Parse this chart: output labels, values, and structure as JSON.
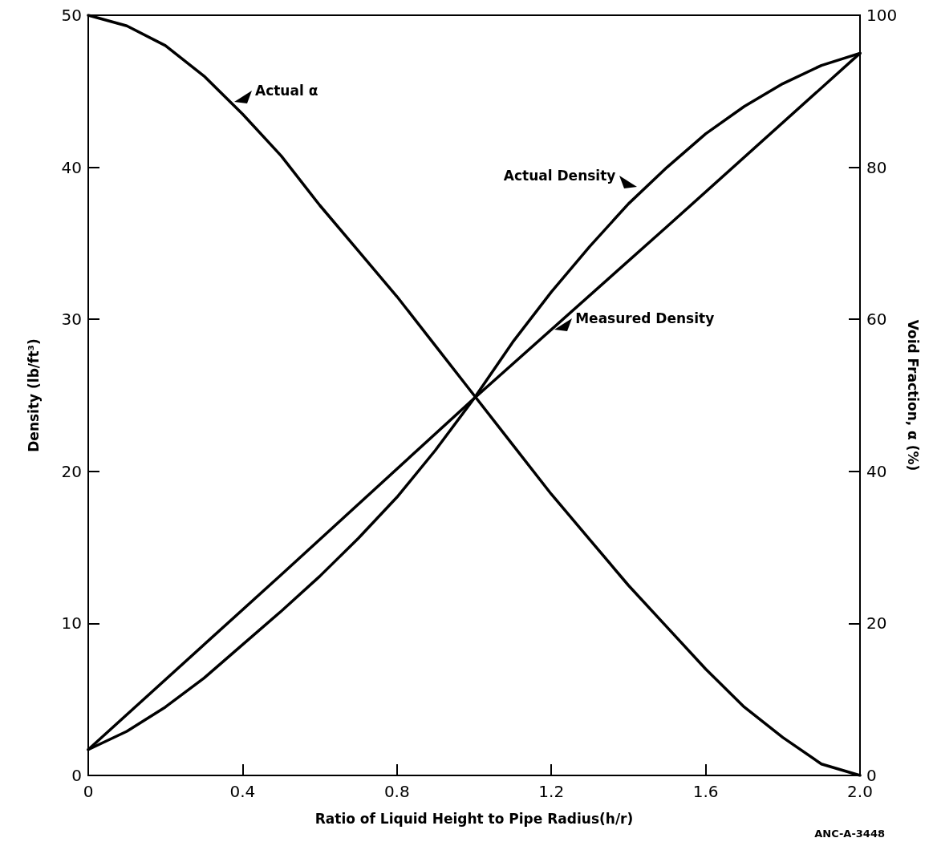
{
  "chart_data": {
    "type": "line",
    "xlabel": "Ratio of Liquid Height to Pipe Radius(h/r)",
    "ylabel": "Density (lb/ft³)",
    "y2label": "Void Fraction, α (%)",
    "xlim": [
      0,
      2
    ],
    "xticks": [
      0,
      0.4,
      0.8,
      1.2,
      1.6,
      {
        "value": 2,
        "label": "2.0"
      }
    ],
    "ylim": [
      0,
      50
    ],
    "yticks": [
      0,
      10,
      20,
      30,
      40,
      50
    ],
    "y2lim": [
      0,
      100
    ],
    "y2ticks": [
      0,
      20,
      40,
      60,
      80,
      100
    ],
    "marker": "none",
    "line_style": "solid",
    "grid": false,
    "series": [
      {
        "color": "#000000",
        "axis": "y2",
        "x": [
          0,
          0.1,
          0.2,
          0.3,
          0.4,
          0.5,
          0.6,
          0.7,
          0.8,
          0.9,
          1.0,
          1.1,
          1.2,
          1.3,
          1.4,
          1.5,
          1.6,
          1.7,
          1.8,
          1.9,
          2.0
        ],
        "values": [
          100,
          98.6,
          96,
          92,
          87,
          81.5,
          75,
          69,
          63,
          56.5,
          50,
          43.5,
          37,
          31,
          25,
          19.5,
          14,
          9,
          5,
          1.5,
          0
        ]
      },
      {
        "color": "#000000",
        "x": [
          0,
          0.1,
          0.2,
          0.3,
          0.4,
          0.5,
          0.6,
          0.7,
          0.8,
          0.9,
          1.0,
          1.1,
          1.2,
          1.3,
          1.4,
          1.5,
          1.6,
          1.7,
          1.8,
          1.9,
          2.0
        ],
        "values": [
          1.7,
          2.9,
          4.5,
          6.4,
          8.6,
          10.8,
          13.1,
          15.6,
          18.3,
          21.4,
          24.8,
          28.5,
          31.8,
          34.8,
          37.6,
          40,
          42.2,
          44,
          45.5,
          46.7,
          47.5
        ]
      },
      {
        "color": "#000000",
        "x": [
          0,
          0.5,
          1.0,
          1.5,
          2.0
        ],
        "values": [
          1.7,
          13.2,
          24.8,
          36.1,
          47.5
        ]
      }
    ],
    "annotations": [
      {
        "text": "Actual α",
        "x": 0.37,
        "y": 44.3
      },
      {
        "text": "Actual Density",
        "x": 1.43,
        "y": 38.7
      },
      {
        "text": "Measured Density",
        "x": 1.2,
        "y": 29.3
      },
      "ANC-A-3448"
    ]
  }
}
